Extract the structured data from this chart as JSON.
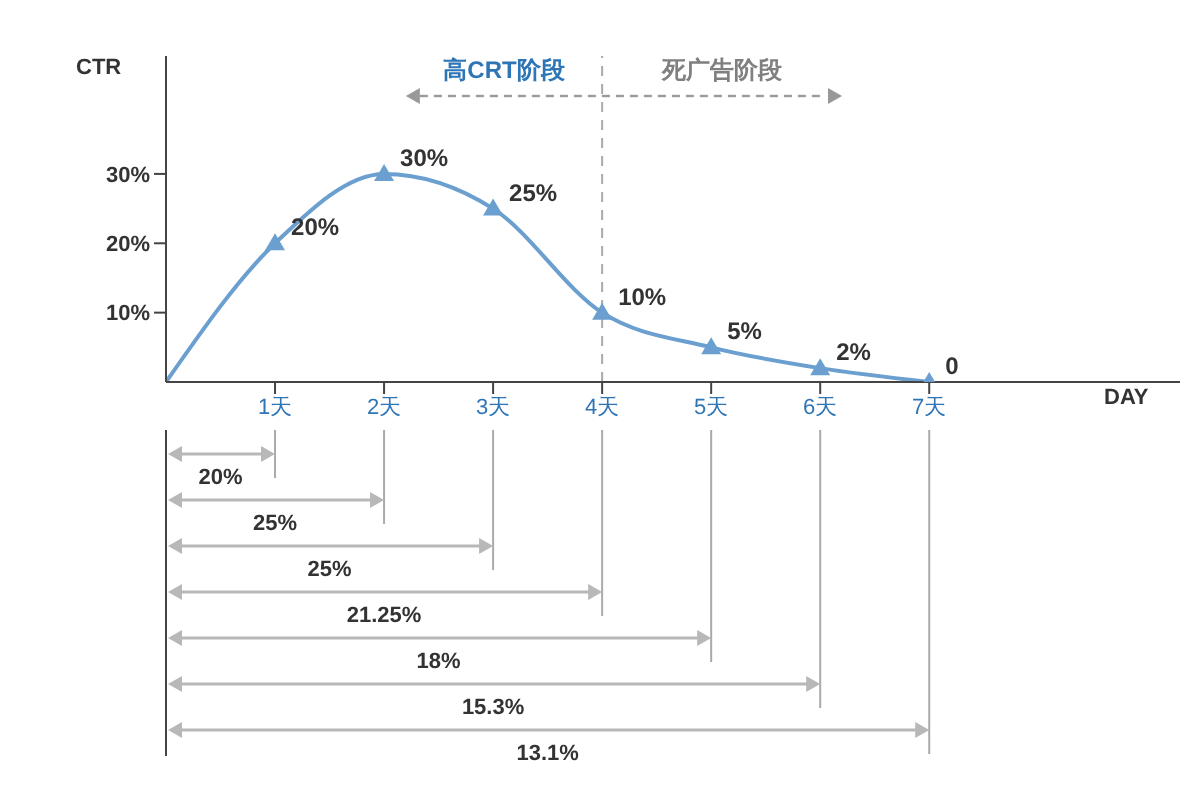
{
  "chart_data": [
    {
      "type": "line",
      "ylabel": "CTR",
      "xlabel": "DAY",
      "x": [
        0,
        1,
        2,
        3,
        4,
        5,
        6,
        7
      ],
      "series": [
        {
          "color": "#6a9fcf",
          "values": [
            0,
            20,
            30,
            25,
            10,
            5,
            2,
            0
          ],
          "value_labels": [
            null,
            "20%",
            "30%",
            "25%",
            "10%",
            "5%",
            "2%",
            "0"
          ]
        }
      ],
      "xlim": [
        0,
        9.3
      ],
      "xticks": [
        {
          "value": 1,
          "label": "1天"
        },
        {
          "value": 2,
          "label": "2天"
        },
        {
          "value": 3,
          "label": "3天"
        },
        {
          "value": 4,
          "label": "4天"
        },
        {
          "value": 5,
          "label": "5天"
        },
        {
          "value": 6,
          "label": "6天"
        },
        {
          "value": 7,
          "label": "7天"
        }
      ],
      "ylim": [
        0,
        47
      ],
      "yticks": [
        {
          "value": 10,
          "label": "10%"
        },
        {
          "value": 20,
          "label": "20%"
        },
        {
          "value": 30,
          "label": "30%"
        }
      ],
      "ref_lines": [
        {
          "axis": "x",
          "value": 4,
          "line_style": "dashed",
          "color": "#aaaaaa"
        }
      ],
      "annotations": [
        "高CRT阶段",
        "死广告阶段"
      ],
      "marker": "triangle",
      "line_style": "solid"
    },
    {
      "type": "other",
      "annotations": [
        "20%",
        "25%",
        "25%",
        "21.25%",
        "18%",
        "15.3%",
        "13.1%"
      ]
    }
  ]
}
